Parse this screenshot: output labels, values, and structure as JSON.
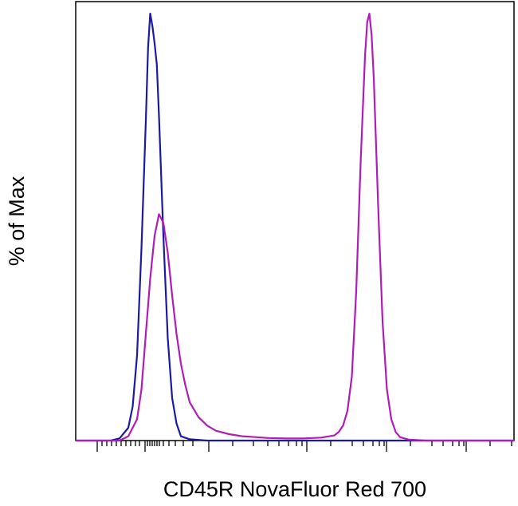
{
  "chart_data": {
    "type": "line",
    "title": "",
    "xlabel": "CD45R NovaFluor Red 700",
    "ylabel": "% of Max",
    "grid": false,
    "legend": "none",
    "x_scale": "biexponential",
    "xlim": [
      0,
      100
    ],
    "ylim": [
      0,
      100
    ],
    "series": [
      {
        "color": "#1a1aa6",
        "x": [
          0,
          8,
          10,
          12,
          13,
          14,
          15,
          16,
          16.5,
          17,
          17.5,
          18,
          18.5,
          19,
          20,
          21,
          22,
          23,
          24,
          26,
          30,
          40,
          60,
          80,
          100
        ],
        "y": [
          0,
          0,
          0.5,
          3,
          8,
          20,
          45,
          75,
          92,
          100,
          97,
          93,
          88,
          76,
          48,
          24,
          10,
          4,
          1,
          0.3,
          0,
          0,
          0,
          0,
          0
        ]
      },
      {
        "color": "#b01cb8",
        "x": [
          0,
          10,
          12,
          14,
          15,
          16,
          17,
          18,
          19,
          20,
          21,
          22,
          23,
          24,
          25,
          26,
          28,
          30,
          32,
          35,
          38,
          41,
          44,
          48,
          52,
          56,
          59,
          60,
          61,
          62,
          63,
          64,
          65,
          66,
          66.5,
          67,
          67.5,
          68,
          69,
          70,
          71,
          72,
          73,
          74,
          76,
          80,
          100
        ],
        "y": [
          0,
          0,
          1,
          5,
          12,
          25,
          38,
          48,
          53,
          51,
          44,
          34,
          25,
          18,
          13,
          9,
          5.5,
          3.5,
          2.3,
          1.5,
          1,
          0.8,
          0.6,
          0.5,
          0.5,
          0.7,
          1.2,
          2,
          3.5,
          7,
          15,
          35,
          65,
          90,
          98,
          100,
          95,
          85,
          55,
          28,
          12,
          5,
          2,
          0.8,
          0.2,
          0,
          0
        ]
      }
    ]
  }
}
